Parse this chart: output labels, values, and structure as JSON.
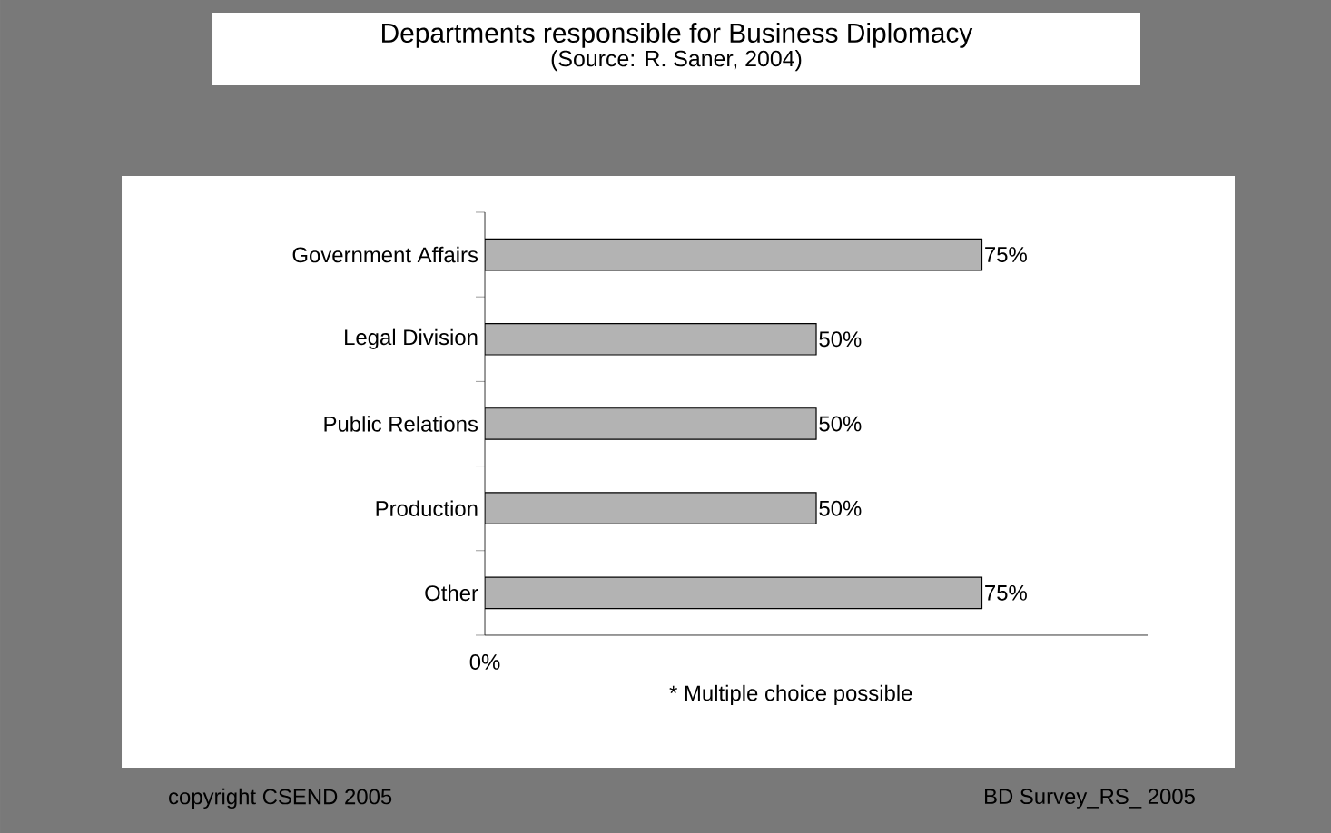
{
  "chart_data": {
    "type": "bar",
    "orientation": "horizontal",
    "title": "Departments responsible for Business Diplomacy",
    "subtitle": "(Source: R. Saner, 2004)",
    "categories": [
      "Government Affairs",
      "Legal Division",
      "Public Relations",
      "Production",
      "Other"
    ],
    "values": [
      75,
      50,
      50,
      50,
      75
    ],
    "value_labels": [
      "75%",
      "50%",
      "50%",
      "50%",
      "75%"
    ],
    "color": "#b3b3b3",
    "xlim": [
      0,
      100
    ],
    "grid": false,
    "annotations": [
      "0%",
      "* Multiple choice possible",
      "copyright CSEND 2005",
      "BD Survey_RS_ 2005"
    ]
  }
}
